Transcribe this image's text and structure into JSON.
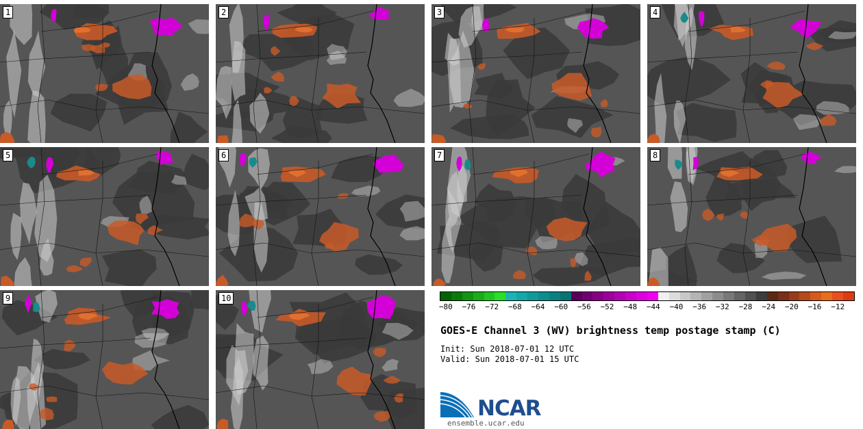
{
  "title": "GOES-E Channel 3 (WV) brightness temp postage stamp (C)",
  "init_label": "Init:",
  "init_time": "Sun 2018-07-01 12 UTC",
  "valid_label": "Valid:",
  "valid_time": "Sun 2018-07-01 15 UTC",
  "logo_text": "NCAR",
  "url": "ensemble.ucar.edu",
  "members": [
    "1",
    "2",
    "3",
    "4",
    "5",
    "6",
    "7",
    "8",
    "9",
    "10"
  ],
  "colorbar": {
    "ticks": [
      "-80",
      "-76",
      "-72",
      "-68",
      "-64",
      "-60",
      "-56",
      "-52",
      "-48",
      "-44",
      "-40",
      "-36",
      "-32",
      "-28",
      "-24",
      "-20",
      "-16",
      "-12"
    ],
    "colors": [
      "#006400",
      "#0a7a0a",
      "#139313",
      "#1bab1b",
      "#22c422",
      "#2ade2a",
      "#1ab4b4",
      "#16a7a7",
      "#129a9a",
      "#0f8d8d",
      "#0b8080",
      "#087373",
      "#5a005a",
      "#700070",
      "#860086",
      "#9c009c",
      "#b200b2",
      "#c800c8",
      "#de00de",
      "#f000f0",
      "#f0f0f0",
      "#dcdcdc",
      "#c8c8c8",
      "#b4b4b4",
      "#a0a0a0",
      "#8c8c8c",
      "#787878",
      "#646464",
      "#505050",
      "#3c3c3c",
      "#5a2a14",
      "#78301a",
      "#963c1e",
      "#b44a1e",
      "#d25a1e",
      "#e66e1e",
      "#e6501e",
      "#dc3c14"
    ]
  },
  "colors": {
    "background": "#555555",
    "dark": "#3a3a3a",
    "light": "#cfcfcf",
    "warm": "#c85a28",
    "warm_core": "#e07030",
    "cold": "#d400d8",
    "cold_core": "#1a8a8a",
    "border": "#111111"
  }
}
